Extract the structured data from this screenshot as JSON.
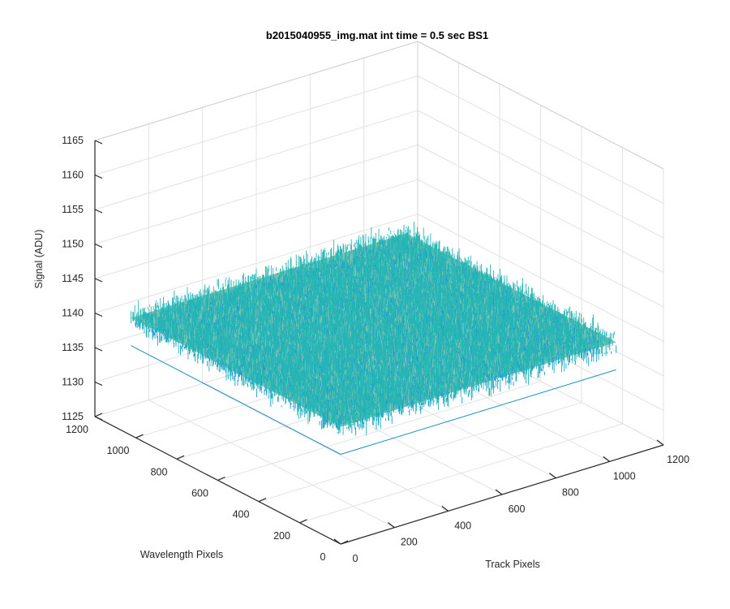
{
  "chart_data": {
    "type": "surface",
    "title": "b2015040955_img.mat int time = 0.5 sec   BS1",
    "xlabel": "Track Pixels",
    "ylabel": "Wavelength Pixels",
    "zlabel": "Signal (ADU)",
    "xlim": [
      0,
      1200
    ],
    "ylim": [
      0,
      1200
    ],
    "zlim": [
      1125,
      1165
    ],
    "x_ticks": [
      "0",
      "200",
      "400",
      "600",
      "800",
      "1000",
      "1200"
    ],
    "y_ticks": [
      "0",
      "200",
      "400",
      "600",
      "800",
      "1000",
      "1200"
    ],
    "z_ticks": [
      "1125",
      "1130",
      "1135",
      "1140",
      "1145",
      "1150",
      "1155",
      "1160",
      "1165"
    ],
    "x_tick_values": [
      0,
      200,
      400,
      600,
      800,
      1000,
      1200
    ],
    "y_tick_values": [
      0,
      200,
      400,
      600,
      800,
      1000,
      1200
    ],
    "z_tick_values": [
      1125,
      1130,
      1135,
      1140,
      1145,
      1150,
      1155,
      1160,
      1165
    ],
    "surface": {
      "x_range": [
        0,
        1024
      ],
      "y_range": [
        0,
        1024
      ],
      "mean_signal": 1142,
      "typical_range": [
        1133,
        1155
      ],
      "colormap": "parula",
      "colors": [
        "#0072bd",
        "#1899d6",
        "#26b5b5",
        "#5cc084",
        "#a6c444",
        "#e8c636"
      ]
    },
    "grid": true,
    "view": "3d-perspective"
  }
}
